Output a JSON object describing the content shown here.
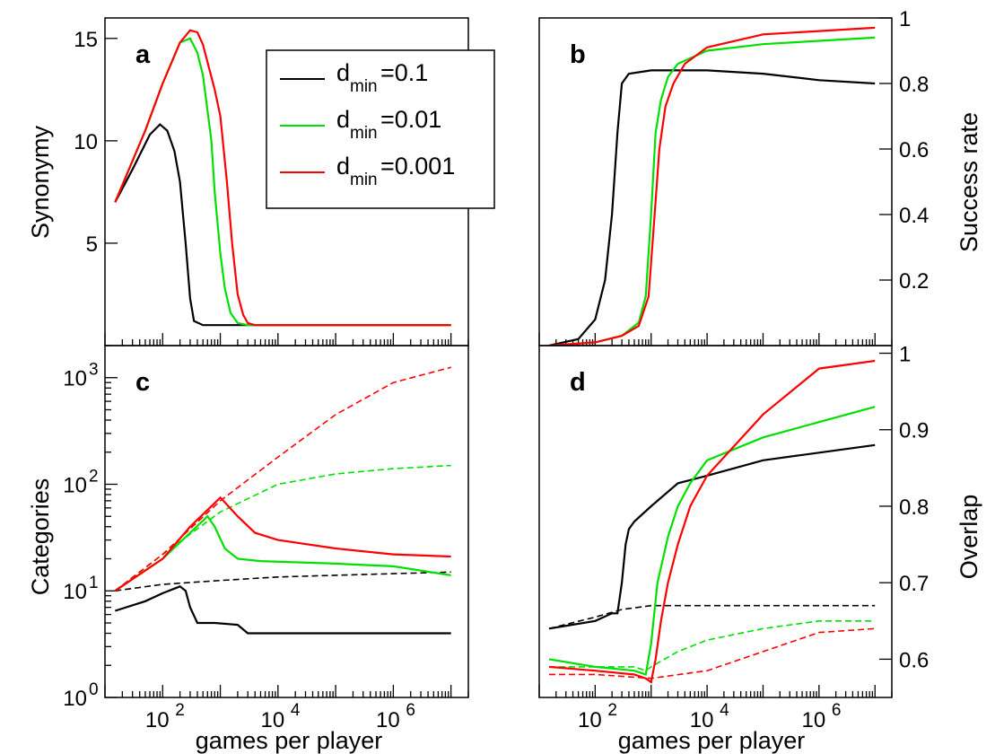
{
  "colors": {
    "black": "#000000",
    "green": "#00e000",
    "red": "#ff0000"
  },
  "legend": [
    {
      "d": "d",
      "sub": "min",
      "val": "=0.1",
      "color": "#000000"
    },
    {
      "d": "d",
      "sub": "min",
      "val": "=0.01",
      "color": "#00e000"
    },
    {
      "d": "d",
      "sub": "min",
      "val": "=0.001",
      "color": "#ff0000"
    }
  ],
  "x_axis": {
    "label": "games per player",
    "scale": "log",
    "range": [
      10,
      20000000
    ],
    "ticks": [
      100,
      10000,
      1000000
    ],
    "tick_labels": [
      "10",
      "10",
      "10"
    ],
    "tick_exponents": [
      "2",
      "4",
      "6"
    ]
  },
  "chart_data": [
    {
      "panel": "a",
      "type": "line",
      "ylabel": "Synonymy",
      "yscale": "linear",
      "ylim": [
        0,
        16
      ],
      "yticks": [
        5,
        10,
        15
      ],
      "ytick_labels": [
        "5",
        "10",
        "15"
      ],
      "series": [
        {
          "name": "d_min=0.1",
          "color": "#000000",
          "x": [
            15,
            30,
            60,
            90,
            120,
            160,
            200,
            250,
            300,
            350,
            500,
            1000,
            3000,
            10000000
          ],
          "y": [
            7,
            8.6,
            10.3,
            10.8,
            10.5,
            9.5,
            8,
            5,
            2.3,
            1.2,
            1.0,
            1.0,
            1.0,
            1.0
          ]
        },
        {
          "name": "d_min=0.01",
          "color": "#00e000",
          "x": [
            15,
            50,
            100,
            200,
            300,
            400,
            500,
            700,
            800,
            1000,
            1200,
            1500,
            2000,
            3000,
            10000000
          ],
          "y": [
            7,
            10.5,
            12.8,
            14.8,
            15.0,
            14.3,
            13.2,
            10,
            7.5,
            4.5,
            2.8,
            1.6,
            1.1,
            1.0,
            1.0
          ]
        },
        {
          "name": "d_min=0.001",
          "color": "#ff0000",
          "x": [
            15,
            50,
            100,
            200,
            300,
            400,
            500,
            800,
            1000,
            1300,
            1600,
            2000,
            2500,
            3000,
            4000,
            10000000
          ],
          "y": [
            7,
            10.5,
            12.8,
            14.8,
            15.4,
            15.3,
            14.7,
            12.5,
            11.2,
            8,
            5,
            2.5,
            1.5,
            1.1,
            1.0,
            1.0
          ]
        }
      ]
    },
    {
      "panel": "b",
      "type": "line",
      "ylabel": "Success rate",
      "yscale": "linear",
      "ylim": [
        0,
        1
      ],
      "yticks": [
        0.2,
        0.4,
        0.6,
        0.8,
        1
      ],
      "ytick_labels": [
        "0.2",
        "0.4",
        "0.6",
        "0.8",
        "1"
      ],
      "series": [
        {
          "name": "d_min=0.1",
          "color": "#000000",
          "x": [
            15,
            50,
            100,
            150,
            200,
            250,
            300,
            400,
            1000,
            10000,
            100000,
            1000000,
            10000000
          ],
          "y": [
            0,
            0.02,
            0.08,
            0.2,
            0.4,
            0.65,
            0.8,
            0.83,
            0.84,
            0.84,
            0.83,
            0.81,
            0.8
          ]
        },
        {
          "name": "d_min=0.01",
          "color": "#00e000",
          "x": [
            15,
            100,
            300,
            600,
            800,
            1000,
            1200,
            1500,
            2000,
            3000,
            10000,
            100000,
            1000000,
            10000000
          ],
          "y": [
            0,
            0.01,
            0.03,
            0.07,
            0.15,
            0.4,
            0.65,
            0.75,
            0.82,
            0.86,
            0.9,
            0.92,
            0.93,
            0.94
          ]
        },
        {
          "name": "d_min=0.001",
          "color": "#ff0000",
          "x": [
            15,
            100,
            300,
            600,
            900,
            1100,
            1400,
            1800,
            2500,
            4000,
            10000,
            100000,
            1000000,
            10000000
          ],
          "y": [
            0,
            0.01,
            0.03,
            0.06,
            0.15,
            0.35,
            0.6,
            0.73,
            0.8,
            0.86,
            0.91,
            0.95,
            0.96,
            0.97
          ]
        }
      ]
    },
    {
      "panel": "c",
      "type": "line",
      "ylabel": "Categories",
      "yscale": "log",
      "ylim": [
        1,
        2000
      ],
      "yticks": [
        1,
        10,
        100,
        1000
      ],
      "ytick_labels": [
        "10",
        "10",
        "10",
        "10"
      ],
      "ytick_exponents": [
        "0",
        "1",
        "2",
        "3"
      ],
      "series": [
        {
          "name": "d_min=0.1 (solid)",
          "color": "#000000",
          "style": "solid",
          "x": [
            15,
            50,
            100,
            200,
            250,
            300,
            400,
            800,
            2000,
            3000,
            10000,
            10000000
          ],
          "y": [
            6.5,
            8,
            9.5,
            11,
            10,
            7,
            5,
            5,
            4.8,
            4.0,
            4.0,
            4.0
          ]
        },
        {
          "name": "d_min=0.1 (dashed)",
          "color": "#000000",
          "style": "dashed",
          "x": [
            15,
            100,
            1000,
            10000,
            100000,
            1000000,
            10000000
          ],
          "y": [
            10,
            11.5,
            12.5,
            13.5,
            14,
            14.5,
            15
          ]
        },
        {
          "name": "d_min=0.01 (solid)",
          "color": "#00e000",
          "style": "solid",
          "x": [
            15,
            100,
            300,
            600,
            800,
            1200,
            2000,
            5000,
            100000,
            1000000,
            10000000
          ],
          "y": [
            10,
            20,
            35,
            50,
            40,
            25,
            20,
            19,
            18,
            17,
            14
          ]
        },
        {
          "name": "d_min=0.01 (dashed)",
          "color": "#00e000",
          "style": "dashed",
          "x": [
            15,
            100,
            1000,
            10000,
            100000,
            1000000,
            10000000
          ],
          "y": [
            10,
            22,
            55,
            100,
            125,
            140,
            150
          ]
        },
        {
          "name": "d_min=0.001 (solid)",
          "color": "#ff0000",
          "style": "solid",
          "x": [
            15,
            100,
            300,
            1000,
            2000,
            4000,
            10000,
            100000,
            1000000,
            10000000
          ],
          "y": [
            10,
            20,
            40,
            75,
            50,
            35,
            30,
            25,
            22,
            21
          ]
        },
        {
          "name": "d_min=0.001 (dashed)",
          "color": "#ff0000",
          "style": "dashed",
          "x": [
            15,
            100,
            1000,
            10000,
            100000,
            1000000,
            10000000
          ],
          "y": [
            10,
            22,
            70,
            180,
            450,
            900,
            1250
          ]
        }
      ]
    },
    {
      "panel": "d",
      "type": "line",
      "ylabel": "Overlap",
      "yscale": "linear",
      "ylim": [
        0.55,
        1.01
      ],
      "yticks": [
        0.6,
        0.7,
        0.8,
        0.9,
        1
      ],
      "ytick_labels": [
        "0.6",
        "0.7",
        "0.8",
        "0.9",
        "1"
      ],
      "series": [
        {
          "name": "d_min=0.1 (solid)",
          "color": "#000000",
          "style": "solid",
          "x": [
            15,
            100,
            200,
            250,
            300,
            350,
            400,
            500,
            1000,
            3000,
            10000,
            100000,
            1000000,
            10000000
          ],
          "y": [
            0.64,
            0.65,
            0.66,
            0.66,
            0.7,
            0.75,
            0.77,
            0.78,
            0.8,
            0.83,
            0.84,
            0.86,
            0.87,
            0.88
          ]
        },
        {
          "name": "d_min=0.1 (dashed)",
          "color": "#000000",
          "style": "dashed",
          "x": [
            15,
            100,
            300,
            1000,
            10000,
            100000,
            10000000
          ],
          "y": [
            0.64,
            0.655,
            0.665,
            0.67,
            0.67,
            0.67,
            0.67
          ]
        },
        {
          "name": "d_min=0.01 (solid)",
          "color": "#00e000",
          "style": "solid",
          "x": [
            15,
            100,
            500,
            800,
            1000,
            1300,
            2000,
            3000,
            5000,
            10000,
            100000,
            1000000,
            10000000
          ],
          "y": [
            0.6,
            0.59,
            0.585,
            0.58,
            0.62,
            0.7,
            0.76,
            0.8,
            0.83,
            0.86,
            0.89,
            0.91,
            0.93
          ]
        },
        {
          "name": "d_min=0.01 (dashed)",
          "color": "#00e000",
          "style": "dashed",
          "x": [
            15,
            500,
            800,
            1000,
            3000,
            10000,
            100000,
            1000000,
            10000000
          ],
          "y": [
            0.59,
            0.59,
            0.585,
            0.59,
            0.61,
            0.625,
            0.64,
            0.65,
            0.65
          ]
        },
        {
          "name": "d_min=0.001 (solid)",
          "color": "#ff0000",
          "style": "solid",
          "x": [
            15,
            100,
            500,
            800,
            1000,
            1200,
            1500,
            2000,
            3000,
            5000,
            10000,
            100000,
            1000000,
            10000000
          ],
          "y": [
            0.59,
            0.585,
            0.58,
            0.575,
            0.57,
            0.6,
            0.65,
            0.7,
            0.75,
            0.8,
            0.84,
            0.92,
            0.98,
            0.99
          ]
        },
        {
          "name": "d_min=0.001 (dashed)",
          "color": "#ff0000",
          "style": "dashed",
          "x": [
            15,
            100,
            1000,
            10000,
            100000,
            1000000,
            10000000
          ],
          "y": [
            0.58,
            0.58,
            0.575,
            0.585,
            0.61,
            0.635,
            0.64
          ]
        }
      ]
    }
  ]
}
